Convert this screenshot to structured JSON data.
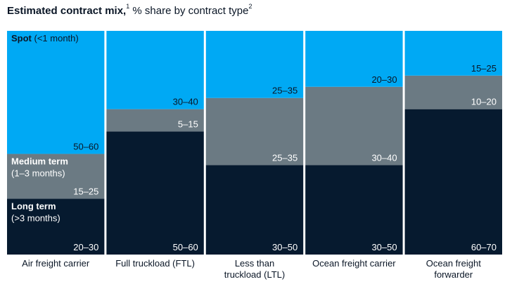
{
  "title": {
    "bold": "Estimated contract mix,",
    "note1": "1",
    "rest": " % share by contract type",
    "note2": "2"
  },
  "colors": {
    "spot": "#00a9f4",
    "medium": "#6b7a83",
    "long": "#061a2f",
    "text_dark": "#0a1626",
    "text_light": "#ffffff"
  },
  "legend": {
    "spot": {
      "name": "Spot",
      "detail": "(<1 month)"
    },
    "medium": {
      "name": "Medium term",
      "detail": "(1–3 months)"
    },
    "long": {
      "name": "Long term",
      "detail": "(>3 months)"
    }
  },
  "chart_data": {
    "type": "bar",
    "stacked": true,
    "title": "Estimated contract mix, % share by contract type",
    "xlabel": "",
    "ylabel": "",
    "ylim": [
      0,
      100
    ],
    "categories": [
      [
        "Air freight carrier"
      ],
      [
        "Full truckload (FTL)"
      ],
      [
        "Less than",
        "truckload (LTL)"
      ],
      [
        "Ocean freight carrier"
      ],
      [
        "Ocean freight",
        "forwarder"
      ]
    ],
    "series": [
      {
        "name": "Long term (>3 months)",
        "key": "long",
        "values": [
          25,
          55,
          40,
          40,
          65
        ],
        "labels": [
          "20–30",
          "50–60",
          "30–50",
          "30–50",
          "60–70"
        ]
      },
      {
        "name": "Medium term (1–3 months)",
        "key": "medium",
        "values": [
          20,
          10,
          30,
          35,
          15
        ],
        "labels": [
          "15–25",
          "5–15",
          "25–35",
          "30–40",
          "10–20"
        ]
      },
      {
        "name": "Spot (<1 month)",
        "key": "spot",
        "values": [
          55,
          35,
          30,
          25,
          20
        ],
        "labels": [
          "50–60",
          "30–40",
          "25–35",
          "20–30",
          "15–25"
        ]
      }
    ]
  }
}
